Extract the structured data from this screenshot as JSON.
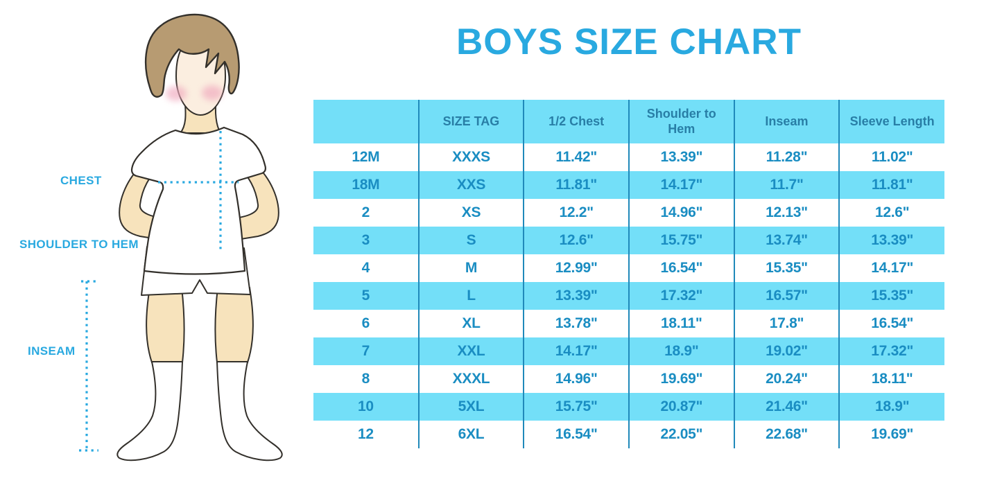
{
  "title": "BOYS SIZE CHART",
  "figure_labels": {
    "chest": "CHEST",
    "shoulder_to_hem": "SHOULDER TO HEM",
    "inseam": "INSEAM"
  },
  "colors": {
    "accent_blue": "#29A9E0",
    "table_fill_cyan": "#73DFF8",
    "table_border_blue": "#2089BA",
    "header_text_blue": "#287EA6",
    "cell_text_blue": "#1A8DC2",
    "skin": "#F7E3BC",
    "skin_face": "#FBEEE0",
    "hair_brown": "#B79B72",
    "cheek_pink": "#F0A8BD",
    "outline_dark": "#33302B"
  },
  "chart_data": {
    "type": "table",
    "title": "BOYS SIZE CHART",
    "columns": [
      "",
      "SIZE TAG",
      "1/2 Chest",
      "Shoulder to Hem",
      "Inseam",
      "Sleeve Length"
    ],
    "rows": [
      [
        "12M",
        "XXXS",
        "11.42\"",
        "13.39\"",
        "11.28\"",
        "11.02\""
      ],
      [
        "18M",
        "XXS",
        "11.81\"",
        "14.17\"",
        "11.7\"",
        "11.81\""
      ],
      [
        "2",
        "XS",
        "12.2\"",
        "14.96\"",
        "12.13\"",
        "12.6\""
      ],
      [
        "3",
        "S",
        "12.6\"",
        "15.75\"",
        "13.74\"",
        "13.39\""
      ],
      [
        "4",
        "M",
        "12.99\"",
        "16.54\"",
        "15.35\"",
        "14.17\""
      ],
      [
        "5",
        "L",
        "13.39\"",
        "17.32\"",
        "16.57\"",
        "15.35\""
      ],
      [
        "6",
        "XL",
        "13.78\"",
        "18.11\"",
        "17.8\"",
        "16.54\""
      ],
      [
        "7",
        "XXL",
        "14.17\"",
        "18.9\"",
        "19.02\"",
        "17.32\""
      ],
      [
        "8",
        "XXXL",
        "14.96\"",
        "19.69\"",
        "20.24\"",
        "18.11\""
      ],
      [
        "10",
        "5XL",
        "15.75\"",
        "20.87\"",
        "21.46\"",
        "18.9\""
      ],
      [
        "12",
        "6XL",
        "16.54\"",
        "22.05\"",
        "22.68\"",
        "19.69\""
      ]
    ],
    "row_stripe_pattern": "white/cyan alternating, header cyan",
    "legend_position": "none",
    "grid": "vertical column separators only"
  }
}
